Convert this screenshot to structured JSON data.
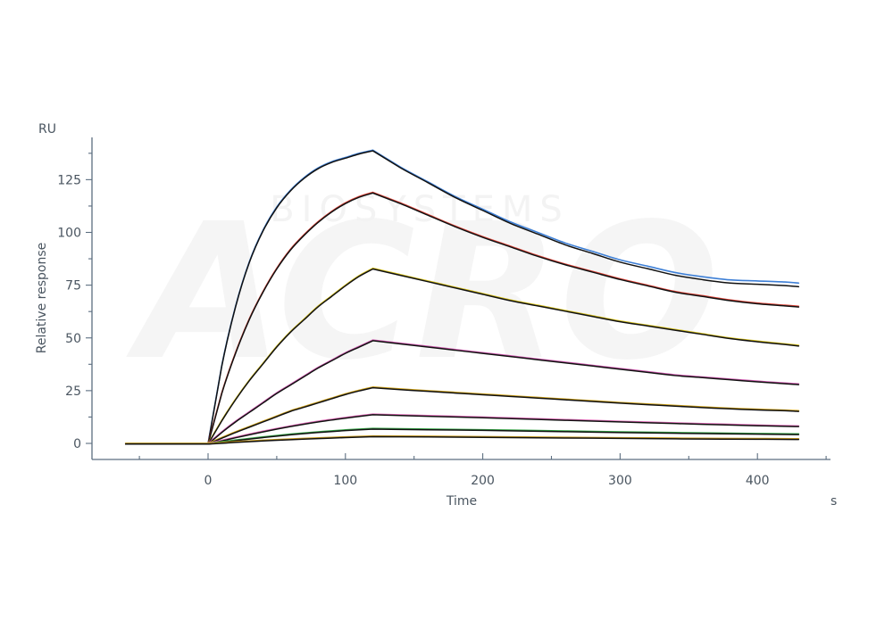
{
  "chart_data": {
    "type": "line",
    "xlabel": "Time",
    "x_unit": "s",
    "ylabel": "Relative response",
    "y_unit": "RU",
    "xlim": [
      -60,
      430
    ],
    "ylim": [
      -8,
      145
    ],
    "xticks_major": [
      0,
      100,
      200,
      300,
      400
    ],
    "yticks_major": [
      0,
      25,
      50,
      75,
      100,
      125
    ],
    "grid": false,
    "legend": "none",
    "watermark": [
      "BIOSYSTEMS",
      "ACRO"
    ],
    "colors": {
      "axis": "#5c6e80",
      "text": "#4a5560",
      "fit": "#111111"
    },
    "series": [
      {
        "color": "#3d7fd6",
        "x": [
          -60,
          0,
          10,
          20,
          30,
          40,
          50,
          60,
          70,
          80,
          90,
          100,
          110,
          120,
          140,
          160,
          180,
          200,
          220,
          240,
          260,
          280,
          300,
          320,
          340,
          360,
          380,
          400,
          420,
          430
        ],
        "y": [
          0,
          0,
          37,
          65,
          86,
          101,
          112,
          120,
          126,
          130.5,
          133.5,
          135.5,
          137.5,
          139,
          131,
          124,
          117,
          111,
          105,
          100,
          95,
          91,
          87,
          84,
          81,
          79,
          77.5,
          77,
          76.5,
          76
        ]
      },
      {
        "color": "#e0453a",
        "x": [
          -60,
          0,
          10,
          20,
          30,
          40,
          50,
          60,
          70,
          80,
          90,
          100,
          110,
          120,
          140,
          160,
          180,
          200,
          220,
          240,
          260,
          280,
          300,
          320,
          340,
          360,
          380,
          400,
          420,
          430
        ],
        "y": [
          0,
          0,
          24,
          43,
          59,
          72,
          83,
          92,
          99,
          105,
          110,
          114,
          117,
          119,
          114,
          108.5,
          103,
          98,
          93.5,
          89,
          85,
          81.5,
          78,
          75,
          72,
          70,
          68,
          66.5,
          65.5,
          65
        ]
      },
      {
        "color": "#d8c21e",
        "x": [
          -60,
          0,
          10,
          20,
          30,
          40,
          50,
          60,
          70,
          80,
          90,
          100,
          110,
          120,
          140,
          160,
          180,
          200,
          220,
          240,
          260,
          280,
          300,
          320,
          340,
          360,
          380,
          400,
          420,
          430
        ],
        "y": [
          0,
          0,
          11,
          21,
          30,
          38,
          46,
          53,
          59,
          65,
          70,
          75,
          79.5,
          83,
          80,
          77,
          74,
          71,
          68,
          65.5,
          63,
          60.5,
          58,
          56,
          54,
          52,
          50,
          48.5,
          47.2,
          46.5
        ]
      },
      {
        "color": "#d05ab0",
        "x": [
          -60,
          0,
          10,
          20,
          30,
          40,
          50,
          60,
          70,
          80,
          90,
          100,
          110,
          120,
          140,
          160,
          180,
          200,
          220,
          240,
          260,
          280,
          300,
          320,
          340,
          360,
          380,
          400,
          420,
          430
        ],
        "y": [
          0,
          0,
          5.5,
          10.5,
          15,
          19.5,
          24,
          28,
          32,
          36,
          39.5,
          43,
          46,
          49,
          47.5,
          46,
          44.5,
          43,
          41.5,
          40,
          38.5,
          37,
          35.5,
          34,
          32.5,
          31.5,
          30.5,
          29.5,
          28.6,
          28.2
        ]
      },
      {
        "color": "#cfa21a",
        "x": [
          -60,
          0,
          10,
          20,
          30,
          40,
          50,
          60,
          70,
          80,
          90,
          100,
          110,
          120,
          140,
          160,
          180,
          200,
          220,
          240,
          260,
          280,
          300,
          320,
          340,
          360,
          380,
          400,
          420,
          430
        ],
        "y": [
          0,
          0,
          2.8,
          5.5,
          8,
          10.5,
          13,
          15.5,
          17.5,
          19.5,
          21.5,
          23.5,
          25.2,
          26.7,
          25.8,
          25,
          24.2,
          23.4,
          22.6,
          21.8,
          21,
          20.2,
          19.4,
          18.7,
          18,
          17.3,
          16.7,
          16.2,
          15.8,
          15.5
        ]
      },
      {
        "color": "#e06bb8",
        "x": [
          -60,
          0,
          20,
          40,
          60,
          80,
          100,
          120,
          160,
          200,
          240,
          280,
          320,
          360,
          400,
          430
        ],
        "y": [
          0,
          0,
          3,
          5.8,
          8.3,
          10.5,
          12.3,
          13.9,
          13.2,
          12.5,
          11.7,
          10.9,
          10.1,
          9.4,
          8.7,
          8.3
        ]
      },
      {
        "color": "#3aa84a",
        "x": [
          -60,
          0,
          20,
          40,
          60,
          80,
          100,
          120,
          160,
          200,
          240,
          280,
          320,
          360,
          400,
          430
        ],
        "y": [
          0,
          0,
          1.6,
          3.1,
          4.4,
          5.5,
          6.4,
          7.1,
          6.8,
          6.5,
          6.1,
          5.7,
          5.3,
          5,
          4.7,
          4.5
        ]
      },
      {
        "color": "#c89a1e",
        "x": [
          -60,
          0,
          20,
          40,
          60,
          80,
          100,
          120,
          160,
          200,
          240,
          280,
          320,
          360,
          400,
          430
        ],
        "y": [
          0,
          0,
          0.8,
          1.5,
          2.1,
          2.6,
          3.1,
          3.5,
          3.4,
          3.2,
          3,
          2.8,
          2.6,
          2.4,
          2.3,
          2.2
        ]
      }
    ]
  }
}
